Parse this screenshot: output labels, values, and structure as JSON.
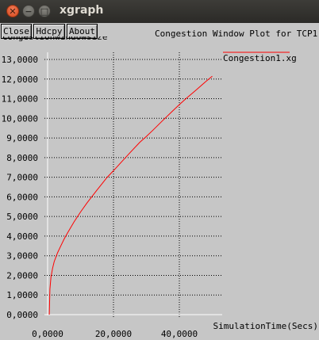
{
  "window": {
    "title": "xgraph",
    "close_glyph": "✕",
    "minimize_glyph": "−",
    "maximize_glyph": "□"
  },
  "toolbar": {
    "close_label": "Close",
    "hdcpy_label": "Hdcpy",
    "about_label": "About"
  },
  "colors": {
    "series": "#ff0000",
    "background": "#c6c6c6",
    "grid": "#000000"
  },
  "chart_data": {
    "type": "line",
    "title": "Congestion Window Plot for TCP1",
    "ylabel": "congestionwindowsize",
    "xlabel": "SimulationTime(Secs)",
    "xlim": [
      0,
      52
    ],
    "ylim": [
      0,
      14000
    ],
    "x_ticks": [
      0,
      20,
      40
    ],
    "x_tick_labels": [
      "0,0000",
      "20,0000",
      "40,0000"
    ],
    "y_ticks": [
      0,
      1000,
      2000,
      3000,
      4000,
      5000,
      6000,
      7000,
      8000,
      9000,
      10000,
      11000,
      12000,
      13000
    ],
    "y_tick_labels": [
      "0,0000",
      "1,0000",
      "2,0000",
      "3,0000",
      "4,0000",
      "5,0000",
      "6,0000",
      "7,0000",
      "8,0000",
      "9,0000",
      "10,0000",
      "11,0000",
      "12,0000",
      "13,0000"
    ],
    "grid": true,
    "legend_position": "top-right",
    "series": [
      {
        "name": "Congestion1.xg",
        "x": [
          0.5,
          0.7,
          1,
          1.5,
          2,
          3,
          4,
          5,
          6,
          8,
          10,
          12,
          15,
          18,
          20,
          22,
          25,
          28,
          30,
          32,
          35,
          38,
          40,
          42,
          45,
          48,
          50
        ],
        "y": [
          0,
          1300,
          1900,
          2350,
          2700,
          3150,
          3500,
          3850,
          4150,
          4720,
          5230,
          5700,
          6350,
          6980,
          7330,
          7700,
          8250,
          8780,
          9080,
          9400,
          9900,
          10380,
          10700,
          11000,
          11430,
          11870,
          12150
        ]
      }
    ]
  }
}
